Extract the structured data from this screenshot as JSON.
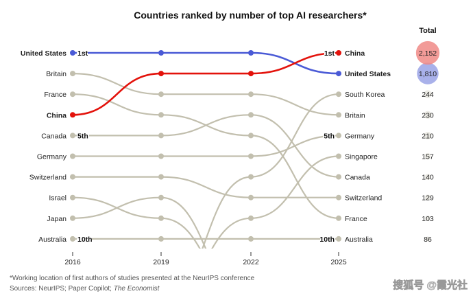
{
  "chart_data": {
    "type": "bump",
    "title": "Countries ranked by number of top AI researchers*",
    "years": [
      "2016",
      "2019",
      "2022",
      "2025"
    ],
    "total_header": "Total",
    "rank_labels": {
      "first": "1st",
      "fifth": "5th",
      "tenth": "10th"
    },
    "series": [
      {
        "name": "United States",
        "ranks": [
          1,
          1,
          1,
          2
        ],
        "total": "1,810",
        "total_value": 1810,
        "highlight": "blue"
      },
      {
        "name": "China",
        "ranks": [
          4,
          2,
          2,
          1
        ],
        "total": "2,152",
        "total_value": 2152,
        "highlight": "red"
      },
      {
        "name": "Britain",
        "ranks": [
          2,
          3,
          3,
          4
        ],
        "total": "230",
        "total_value": 230
      },
      {
        "name": "France",
        "ranks": [
          3,
          4,
          5,
          9
        ],
        "total": "103",
        "total_value": 103
      },
      {
        "name": "Canada",
        "ranks": [
          5,
          5,
          4,
          7
        ],
        "total": "140",
        "total_value": 140
      },
      {
        "name": "Germany",
        "ranks": [
          6,
          6,
          6,
          5
        ],
        "total": "210",
        "total_value": 210
      },
      {
        "name": "Switzerland",
        "ranks": [
          7,
          7,
          8,
          8
        ],
        "total": "129",
        "total_value": 129
      },
      {
        "name": "Israel",
        "ranks": [
          8,
          9,
          null,
          null
        ]
      },
      {
        "name": "Japan",
        "ranks": [
          9,
          8,
          null,
          null
        ]
      },
      {
        "name": "Australia",
        "ranks": [
          10,
          10,
          10,
          10
        ],
        "total": "86",
        "total_value": 86
      },
      {
        "name": "South Korea",
        "ranks": [
          null,
          null,
          7,
          3
        ],
        "total": "244",
        "total_value": 244
      },
      {
        "name": "Singapore",
        "ranks": [
          null,
          null,
          9,
          6
        ],
        "total": "157",
        "total_value": 157
      }
    ],
    "footnote": "*Working location of first authors of studies presented at the NeurIPS conference",
    "sources_prefix": "Sources: NeurIPS; Paper Copilot; ",
    "sources_italic": "The Economist",
    "watermark": "搜狐号 @霞光社"
  },
  "colors": {
    "red": "#e3120b",
    "blue": "#4a5ad6",
    "grey": "#c2bfae",
    "red_bubble": "#f08a86",
    "blue_bubble": "#9aa3e6",
    "grey_bubble": "#ebeae4"
  }
}
